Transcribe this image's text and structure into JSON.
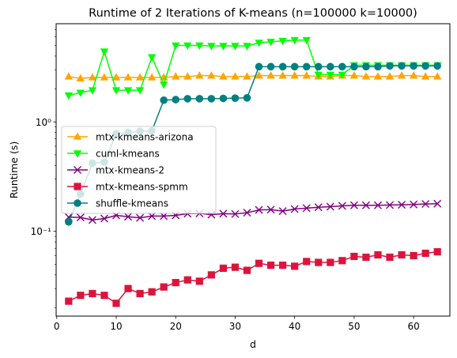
{
  "chart_data": {
    "type": "line",
    "title": "Runtime of 2 Iterations of K-means (n=100000 k=10000)",
    "xlabel": "d",
    "ylabel": "Runtime (s)",
    "xlim": [
      -0.1,
      66.1
    ],
    "ylim": [
      0.0168,
      7.9
    ],
    "yscale": "log",
    "x_ticks": [
      0,
      10,
      20,
      30,
      40,
      50,
      60
    ],
    "y_ticks": [
      {
        "value": 0.1,
        "label": "10⁻¹"
      },
      {
        "value": 1,
        "label": "10⁰"
      }
    ],
    "grid": false,
    "legend_position": "center-left",
    "x": [
      2,
      4,
      6,
      8,
      10,
      12,
      14,
      16,
      18,
      20,
      22,
      24,
      26,
      28,
      30,
      32,
      34,
      36,
      38,
      40,
      42,
      44,
      46,
      48,
      50,
      52,
      54,
      56,
      58,
      60,
      62,
      64
    ],
    "series": [
      {
        "name": "mtx-kmeans-arizona",
        "color": "#ffa500",
        "marker": "triangle-up",
        "values": [
          2.6,
          2.5,
          2.55,
          2.55,
          2.55,
          2.55,
          2.55,
          2.55,
          2.55,
          2.6,
          2.6,
          2.65,
          2.65,
          2.6,
          2.6,
          2.6,
          2.65,
          2.65,
          2.65,
          2.65,
          2.65,
          2.6,
          2.6,
          2.65,
          2.65,
          2.6,
          2.6,
          2.6,
          2.65,
          2.65,
          2.6,
          2.6
        ]
      },
      {
        "name": "cuml-kmeans",
        "color": "#00ff00",
        "marker": "triangle-down",
        "values": [
          1.75,
          1.85,
          1.95,
          4.4,
          1.95,
          1.95,
          1.95,
          3.9,
          2.2,
          5.0,
          5.0,
          5.0,
          4.95,
          4.95,
          4.95,
          4.95,
          5.3,
          5.4,
          5.5,
          5.6,
          5.6,
          2.7,
          2.7,
          2.7,
          3.3,
          3.3,
          3.3,
          3.3,
          3.3,
          3.3,
          3.3,
          3.3
        ]
      },
      {
        "name": "mtx-kmeans-2",
        "color": "#800080",
        "marker": "x",
        "values": [
          0.135,
          0.134,
          0.127,
          0.131,
          0.14,
          0.136,
          0.133,
          0.138,
          0.138,
          0.14,
          0.145,
          0.146,
          0.142,
          0.145,
          0.144,
          0.148,
          0.157,
          0.158,
          0.153,
          0.16,
          0.163,
          0.166,
          0.168,
          0.171,
          0.173,
          0.173,
          0.173,
          0.174,
          0.175,
          0.176,
          0.178,
          0.179
        ]
      },
      {
        "name": "mtx-kmeans-spmm",
        "color": "#dc143c",
        "marker": "square",
        "values": [
          0.023,
          0.026,
          0.027,
          0.026,
          0.022,
          0.03,
          0.027,
          0.028,
          0.031,
          0.034,
          0.036,
          0.035,
          0.04,
          0.046,
          0.047,
          0.044,
          0.051,
          0.049,
          0.049,
          0.048,
          0.053,
          0.052,
          0.052,
          0.054,
          0.059,
          0.058,
          0.061,
          0.058,
          0.061,
          0.06,
          0.063,
          0.065
        ]
      },
      {
        "name": "shuffle-kmeans",
        "color": "#008080",
        "marker": "circle",
        "values": [
          0.122,
          0.22,
          0.42,
          0.43,
          0.78,
          0.8,
          0.82,
          0.83,
          1.58,
          1.6,
          1.63,
          1.63,
          1.63,
          1.64,
          1.65,
          1.66,
          3.2,
          3.2,
          3.2,
          3.2,
          3.2,
          3.2,
          3.2,
          3.2,
          3.2,
          3.2,
          3.2,
          3.25,
          3.25,
          3.25,
          3.25,
          3.25
        ]
      }
    ]
  }
}
